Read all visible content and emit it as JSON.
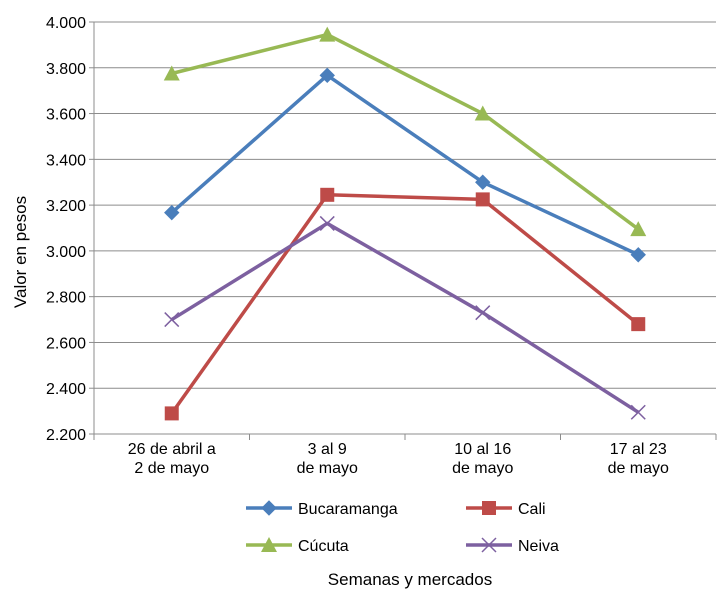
{
  "chart_data": {
    "type": "line",
    "title": "",
    "xlabel": "Semanas y mercados",
    "ylabel": "Valor en pesos",
    "categories": [
      [
        "26 de abril a",
        "2 de mayo"
      ],
      [
        "3 al 9",
        "de mayo"
      ],
      [
        "10 al 16",
        "de mayo"
      ],
      [
        "17 al 23",
        "de mayo"
      ]
    ],
    "ylim": [
      2200,
      4000
    ],
    "yticks": [
      2200,
      2400,
      2600,
      2800,
      3000,
      3200,
      3400,
      3600,
      3800,
      4000
    ],
    "ytick_labels": [
      "2.200",
      "2.400",
      "2.600",
      "2.800",
      "3.000",
      "3.200",
      "3.400",
      "3.600",
      "3.800",
      "4.000"
    ],
    "grid": true,
    "legend_position": "bottom",
    "series": [
      {
        "name": "Bucaramanga",
        "values": [
          3167,
          3767,
          3300,
          2983
        ],
        "color": "#4a7ebb",
        "marker": "diamond"
      },
      {
        "name": "Cali",
        "values": [
          2290,
          3245,
          3225,
          2680
        ],
        "color": "#be4b48",
        "marker": "square"
      },
      {
        "name": "Cúcuta",
        "values": [
          3775,
          3945,
          3600,
          3095
        ],
        "color": "#98b954",
        "marker": "triangle"
      },
      {
        "name": "Neiva",
        "values": [
          2700,
          3120,
          2730,
          2295
        ],
        "color": "#7d60a0",
        "marker": "x"
      }
    ]
  }
}
